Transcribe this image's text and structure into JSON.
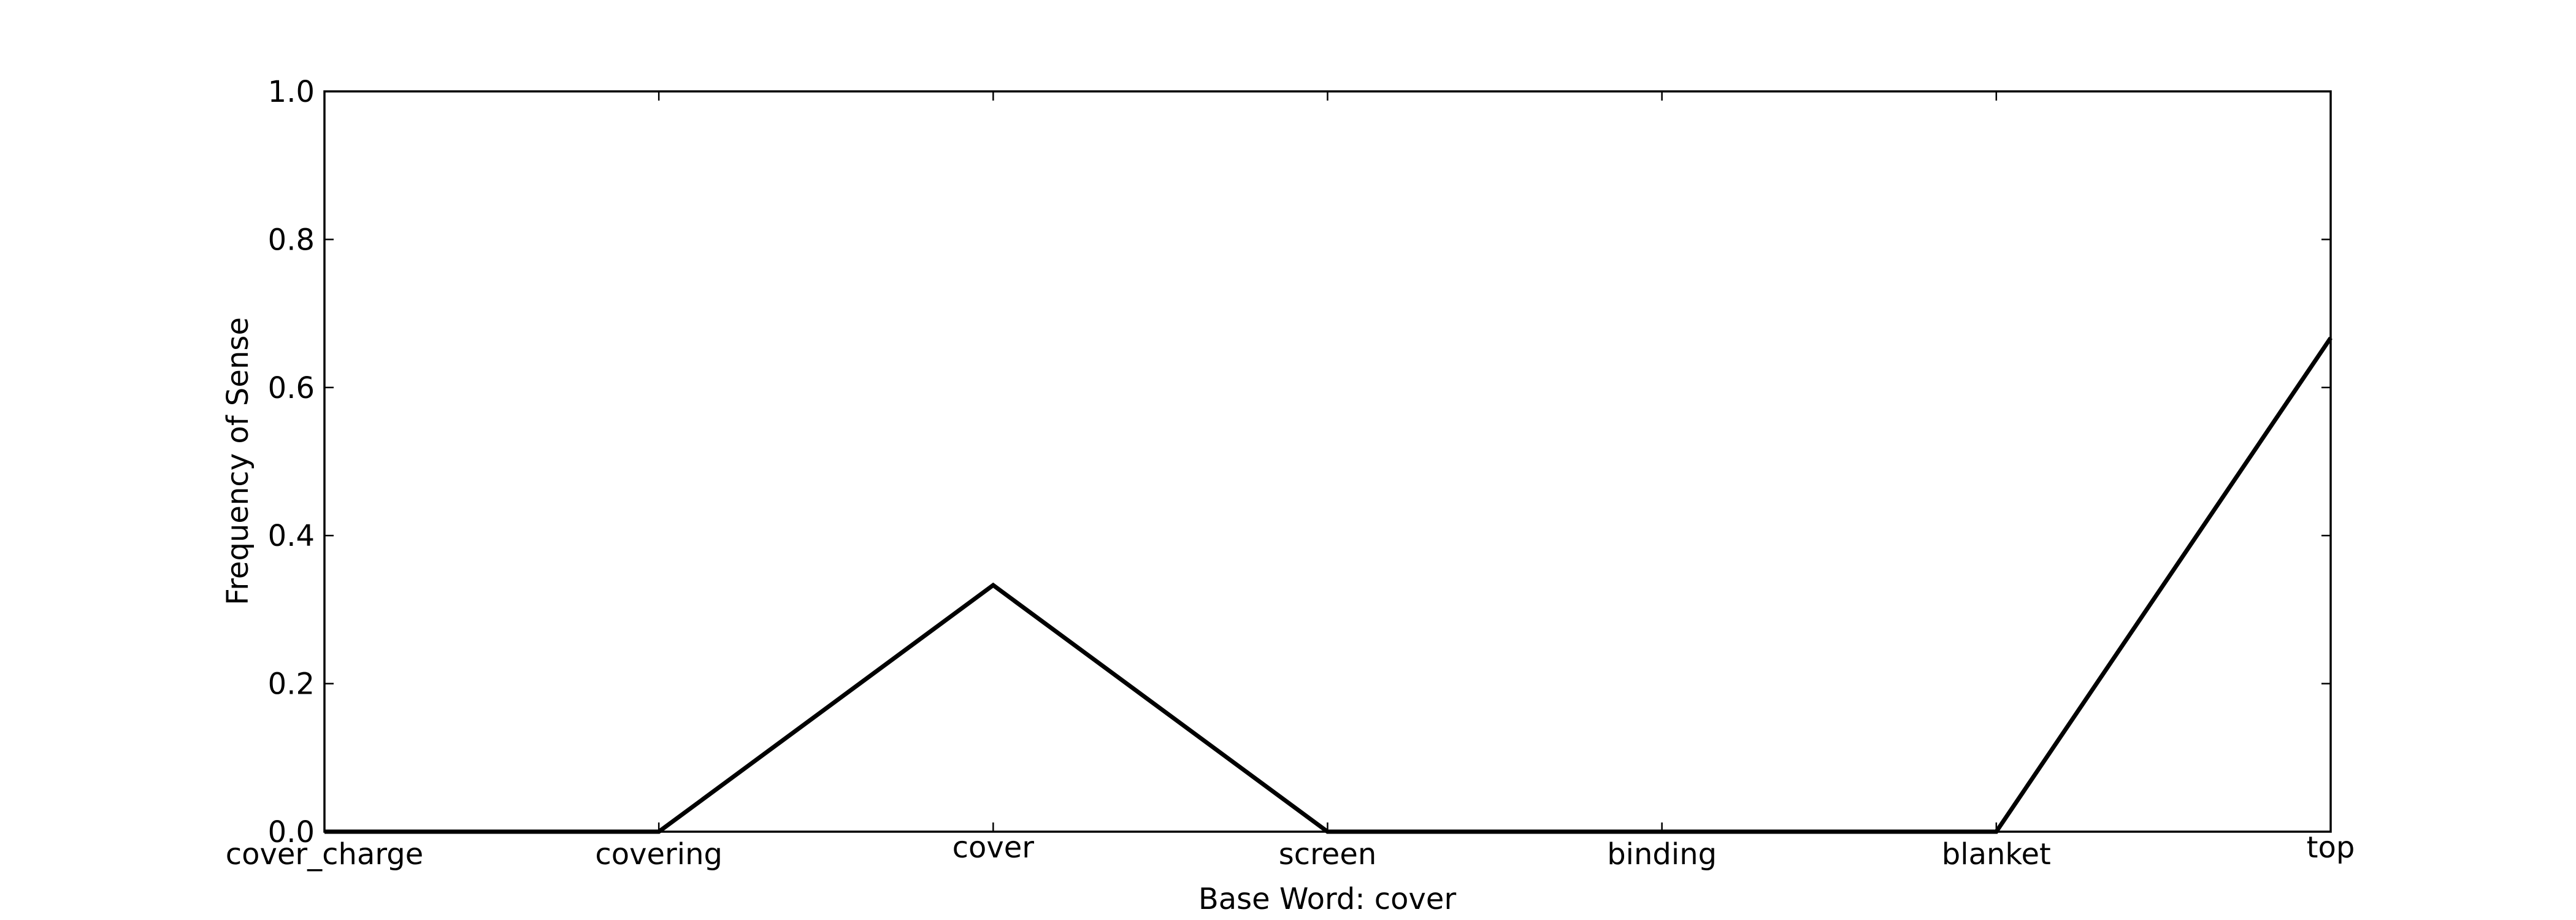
{
  "chart_data": {
    "type": "line",
    "title": "",
    "xlabel": "Base Word: cover",
    "ylabel": "Frequency of Sense",
    "categories": [
      "cover_charge",
      "covering",
      "cover",
      "screen",
      "binding",
      "blanket",
      "top"
    ],
    "series": [
      {
        "values": [
          0.0,
          0.0,
          0.333,
          0.0,
          0.0,
          0.0,
          0.667
        ],
        "color": "#000000"
      }
    ],
    "ylim": [
      0.0,
      1.0
    ],
    "yticks": [
      "0.0",
      "0.2",
      "0.4",
      "0.6",
      "0.8",
      "1.0"
    ],
    "grid": false,
    "legend": "none"
  }
}
